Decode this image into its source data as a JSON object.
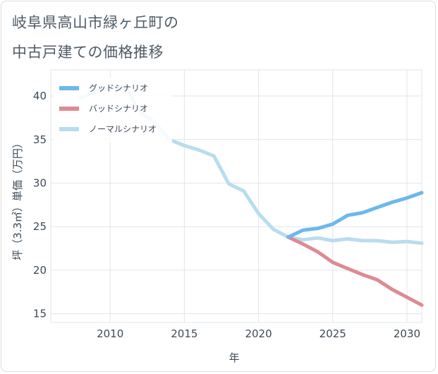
{
  "title_line1": "岐阜県高山市緑ヶ丘町の",
  "title_line2": "中古戸建ての価格推移",
  "chart_data": {
    "type": "line",
    "xlabel": "年",
    "ylabel": "坪（3.3㎡）単価（万円）",
    "xlim": [
      2006,
      2031
    ],
    "ylim": [
      14,
      43
    ],
    "x_ticks": [
      2010,
      2015,
      2020,
      2025,
      2030
    ],
    "y_ticks": [
      15,
      20,
      25,
      30,
      35,
      40
    ],
    "legend_position": "top-left",
    "grid": true,
    "series": [
      {
        "name": "グッドシナリオ",
        "color": "#6cb8ec",
        "points": [
          [
            2022,
            23.8
          ],
          [
            2023,
            24.6
          ],
          [
            2024,
            24.8
          ],
          [
            2025,
            25.3
          ],
          [
            2026,
            26.3
          ],
          [
            2027,
            26.6
          ],
          [
            2028,
            27.2
          ],
          [
            2029,
            27.8
          ],
          [
            2030,
            28.3
          ],
          [
            2031,
            28.9
          ]
        ]
      },
      {
        "name": "バッドシナリオ",
        "color": "#de8a93",
        "points": [
          [
            2022,
            23.8
          ],
          [
            2023,
            23.0
          ],
          [
            2024,
            22.1
          ],
          [
            2025,
            20.9
          ],
          [
            2026,
            20.2
          ],
          [
            2027,
            19.5
          ],
          [
            2028,
            18.9
          ],
          [
            2029,
            17.8
          ],
          [
            2030,
            16.9
          ],
          [
            2031,
            16.0
          ]
        ]
      },
      {
        "name": "ノーマルシナリオ",
        "color": "#b9dcee",
        "points": [
          [
            2008,
            39.8
          ],
          [
            2009,
            40.5
          ],
          [
            2010,
            40.9
          ],
          [
            2011,
            41.3
          ],
          [
            2012,
            38.1
          ],
          [
            2013,
            37.0
          ],
          [
            2014,
            35.0
          ],
          [
            2015,
            34.3
          ],
          [
            2016,
            33.8
          ],
          [
            2017,
            33.1
          ],
          [
            2018,
            29.9
          ],
          [
            2019,
            29.1
          ],
          [
            2020,
            26.5
          ],
          [
            2021,
            24.7
          ],
          [
            2022,
            23.8
          ],
          [
            2023,
            23.5
          ],
          [
            2024,
            23.7
          ],
          [
            2025,
            23.4
          ],
          [
            2026,
            23.6
          ],
          [
            2027,
            23.4
          ],
          [
            2028,
            23.4
          ],
          [
            2029,
            23.2
          ],
          [
            2030,
            23.3
          ],
          [
            2031,
            23.1
          ]
        ]
      }
    ]
  }
}
